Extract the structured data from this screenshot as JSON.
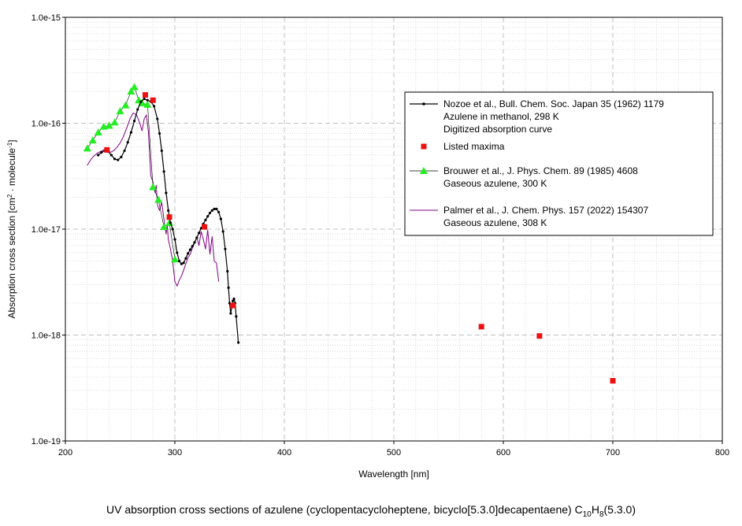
{
  "caption": {
    "main": "UV absorption cross sections of azulene (cyclopentacycloheptene, bicyclo[5.3.0]decapentaene) C",
    "sub1": "10",
    "h": "H",
    "sub2": "8",
    "tail": "(5.3.0)"
  },
  "colors": {
    "nozoe": "#000000",
    "maxima": "#ee1111",
    "brouwer_marker": "#22ee22",
    "brouwer_line": "#000000",
    "palmer": "#800080",
    "grid": "#c8c8c8"
  },
  "chart_data": {
    "type": "scatter",
    "xlabel": "Wavelength [nm]",
    "ylabel": "Absorption cross section [cm",
    "ylabel_sup1": "2",
    "ylabel_mid": " · molecule",
    "ylabel_sup2": "-1",
    "ylabel_end": "]",
    "xlim": [
      200,
      800
    ],
    "ylim": [
      1e-19,
      1e-15
    ],
    "yscale": "log",
    "grid": true,
    "legend_position": "top-right",
    "x_ticks": [
      "200",
      "300",
      "400",
      "500",
      "600",
      "700",
      "800"
    ],
    "y_ticks": [
      "1.0e-19",
      "1.0e-18",
      "1.0e-17",
      "1.0e-16",
      "1.0e-15"
    ],
    "legend": [
      {
        "lines": [
          "Nozoe et al., Bull. Chem. Soc. Japan 35 (1962) 1179",
          "Azulene in methanol, 298 K",
          "Digitized absorption curve"
        ]
      },
      {
        "lines": [
          "Listed maxima"
        ]
      },
      {
        "lines": [
          "Brouwer et al., J. Phys. Chem. 89 (1985) 4608",
          "Gaseous azulene, 300 K"
        ]
      },
      {
        "lines": [
          "Palmer et al., J. Chem. Phys. 157 (2022) 154307",
          "Gaseous azulene, 308 K"
        ]
      }
    ],
    "series": [
      {
        "key": "nozoe",
        "x": [
          230,
          233,
          236,
          239,
          242,
          245,
          248,
          251,
          254,
          257,
          260,
          263,
          266,
          269,
          272,
          275,
          278,
          281,
          284,
          286,
          288,
          290,
          292,
          294,
          296,
          298,
          300,
          302,
          304,
          306,
          308,
          310,
          312,
          314,
          316,
          318,
          320,
          322,
          324,
          326,
          328,
          330,
          332,
          334,
          336,
          338,
          340,
          342,
          344,
          346,
          348,
          349,
          350,
          351,
          352,
          353,
          354,
          355,
          356,
          358
        ],
        "y": [
          5e-17,
          5.3e-17,
          5.5e-17,
          5.4e-17,
          5e-17,
          4.6e-17,
          4.5e-17,
          4.8e-17,
          5.5e-17,
          6.6e-17,
          8.2e-17,
          1.05e-16,
          1.35e-16,
          1.6e-16,
          1.7e-16,
          1.65e-16,
          1.6e-16,
          1.45e-16,
          1.1e-16,
          8e-17,
          5.5e-17,
          3.5e-17,
          2.2e-17,
          1.5e-17,
          1.15e-17,
          1e-17,
          8e-18,
          6e-18,
          5e-18,
          4.7e-18,
          4.8e-18,
          5.3e-18,
          5.9e-18,
          6.4e-18,
          6.9e-18,
          7.5e-18,
          8.3e-18,
          9.2e-18,
          1.02e-17,
          1.12e-17,
          1.22e-17,
          1.32e-17,
          1.42e-17,
          1.5e-17,
          1.55e-17,
          1.55e-17,
          1.45e-17,
          1.25e-17,
          9.5e-18,
          6.5e-18,
          4e-18,
          2.8e-18,
          2e-18,
          1.6e-18,
          1.85e-18,
          2.1e-18,
          2.2e-18,
          2e-18,
          1.5e-18,
          8.5e-19
        ]
      },
      {
        "key": "maxima",
        "x": [
          238,
          273,
          280,
          295,
          327,
          353,
          580,
          633,
          700
        ],
        "y": [
          5.6e-17,
          1.85e-16,
          1.65e-16,
          1.3e-17,
          1.05e-17,
          1.9e-18,
          1.2e-18,
          9.8e-19,
          3.7e-19
        ]
      },
      {
        "key": "brouwer",
        "x": [
          220,
          225,
          230,
          235,
          240,
          245,
          250,
          255,
          260,
          263,
          267,
          270,
          275,
          280,
          285,
          290,
          295,
          300
        ],
        "y": [
          5.8e-17,
          6.9e-17,
          8.2e-17,
          9.3e-17,
          9.5e-17,
          1.02e-16,
          1.3e-16,
          1.48e-16,
          2e-16,
          2.2e-16,
          1.65e-16,
          1.55e-16,
          1.5e-16,
          2.5e-17,
          1.9e-17,
          1.05e-17,
          1.15e-17,
          5.2e-18
        ]
      },
      {
        "key": "palmer",
        "x": [
          220,
          223,
          226,
          229,
          232,
          235,
          238,
          241,
          244,
          247,
          250,
          253,
          256,
          259,
          262,
          265,
          268,
          270,
          272,
          274,
          276,
          277,
          278,
          280,
          282,
          283,
          284,
          286,
          288,
          290,
          292,
          293,
          294,
          296,
          298,
          300,
          302,
          304,
          306,
          308,
          310,
          312,
          314,
          316,
          318,
          320,
          322,
          324,
          326,
          328,
          330,
          332,
          334,
          336,
          338,
          340
        ],
        "y": [
          4e-17,
          4.5e-17,
          4.9e-17,
          5.2e-17,
          5.4e-17,
          5.6e-17,
          5.8e-17,
          5.3e-17,
          5.5e-17,
          5.9e-17,
          6.5e-17,
          7.5e-17,
          9e-17,
          1.1e-16,
          1.25e-16,
          1.2e-16,
          1e-16,
          8.5e-17,
          1.1e-16,
          1.2e-16,
          8e-17,
          5e-17,
          3.2e-17,
          2.8e-17,
          2.2e-17,
          2.6e-17,
          1.7e-17,
          1.5e-17,
          1.8e-17,
          1.25e-17,
          9e-18,
          1.1e-17,
          8e-18,
          6.5e-18,
          5e-18,
          3.2e-18,
          2.9e-18,
          3.3e-18,
          3.6e-18,
          4.1e-18,
          4.7e-18,
          5.4e-18,
          5.8e-18,
          6.6e-18,
          7.4e-18,
          8.4e-18,
          7e-18,
          9.5e-18,
          8e-18,
          6.5e-18,
          9.8e-18,
          5.8e-18,
          8.5e-18,
          5e-18,
          4.8e-18,
          3.2e-18
        ]
      }
    ]
  }
}
